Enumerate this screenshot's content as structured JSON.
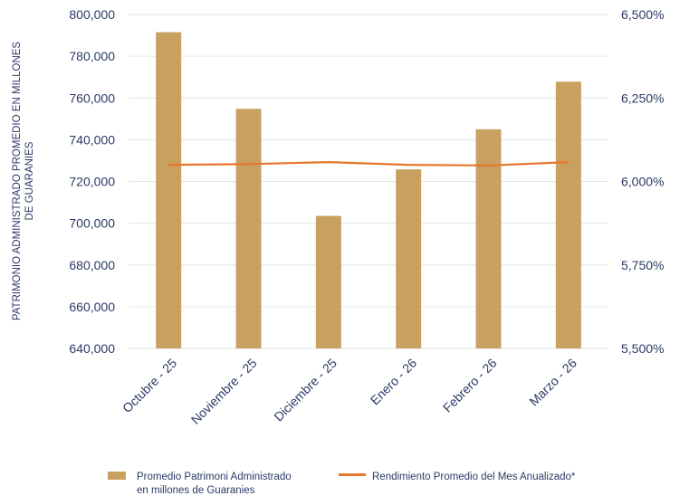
{
  "chart_data": {
    "type": "bar",
    "categories": [
      "Octubre - 25",
      "Noviembre - 25",
      "Diciembre - 25",
      "Enero - 26",
      "Febrero - 26",
      "Marzo - 26"
    ],
    "series": [
      {
        "name": "Promedio Patrimoni Administrado en millones de Guaranies",
        "type": "bar",
        "axis": "left",
        "color": "#c8a060",
        "values": [
          791500,
          754800,
          703500,
          725800,
          745000,
          767800
        ]
      },
      {
        "name": "Rendimiento Promedio del Mes Anualizado*",
        "type": "line",
        "axis": "right",
        "color": "#e8762d",
        "values": [
          6.05,
          6.052,
          6.058,
          6.05,
          6.048,
          6.058
        ]
      }
    ],
    "ylabel": "PATRIMONIO ADMINISTRADO PROMEDIO EN MILLONES DE GUARANIES",
    "ylim": [
      640000,
      800000
    ],
    "yticks": [
      "640,000",
      "660,000",
      "680,000",
      "700,000",
      "720,000",
      "740,000",
      "760,000",
      "780,000",
      "800,000"
    ],
    "y2lim": [
      5.5,
      6.5
    ],
    "y2ticks": [
      "5,500%",
      "5,750%",
      "6,000%",
      "6,250%",
      "6,500%"
    ],
    "grid": true,
    "legend": "bottom",
    "legend_labels": [
      {
        "line1": "Promedio Patrimoni Administrado",
        "line2": "en millones de Guaranies"
      },
      {
        "line1": "Rendimiento Promedio del Mes Anualizado*",
        "line2": ""
      }
    ],
    "ylabel_lines": [
      "PATRIMONIO ADMINISTRADO PROMEDIO EN MILLONES",
      "DE GUARANIES"
    ],
    "colors": {
      "text": "#2b3a67",
      "grid": "#e6e6e6"
    }
  }
}
